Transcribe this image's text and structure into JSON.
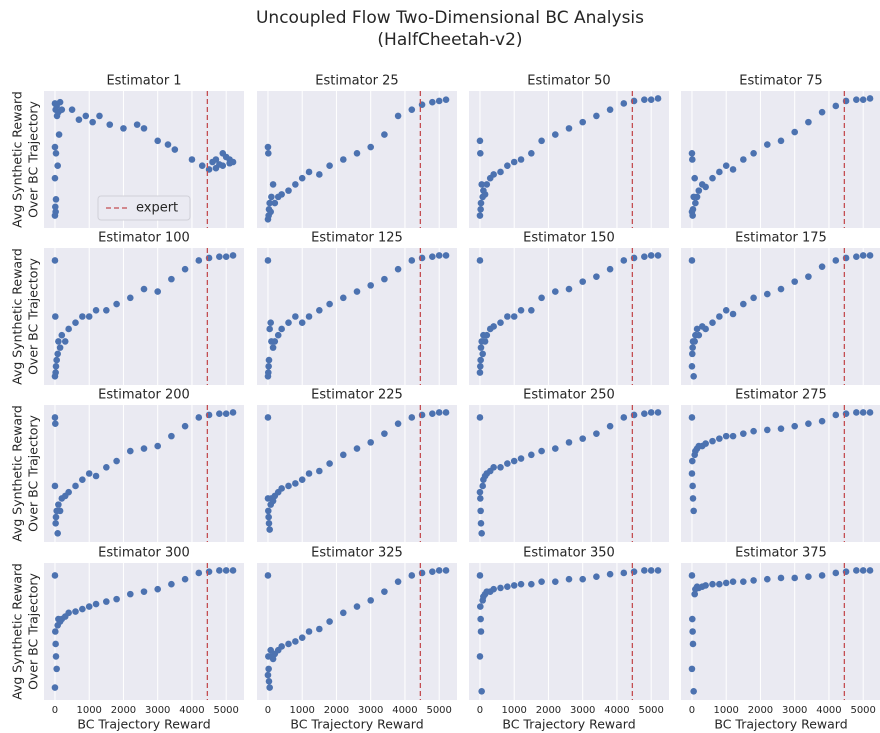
{
  "title": [
    "Uncoupled Flow Two-Dimensional BC Analysis",
    "(HalfCheetah-v2)"
  ],
  "chart_data": [
    {
      "type": "scatter",
      "title": "Estimator 1",
      "ylabel": [
        "Avg Synthetic Reward",
        "Over BC Trajectory"
      ],
      "color": "#4c72b0",
      "xlim": [
        -320,
        5520
      ],
      "ylim": [
        -0.05,
        1.05
      ],
      "xticks": [
        0,
        1000,
        2000,
        3000,
        4000,
        5000
      ],
      "grid": true,
      "vline_x": 4450,
      "vline_color": "#c44e52",
      "vline_label": "expert",
      "legend": "lower left",
      "x": [
        0,
        20,
        50,
        100,
        150,
        0,
        30,
        80,
        0,
        10,
        20,
        0,
        30,
        60,
        120,
        200,
        500,
        700,
        900,
        1100,
        1300,
        1600,
        2000,
        2400,
        2600,
        3000,
        3300,
        3500,
        4000,
        4300,
        4500,
        4600,
        4700,
        4800,
        4900,
        5000,
        5100,
        5200,
        4700,
        4900,
        5100
      ],
      "y": [
        0.95,
        0.9,
        0.93,
        0.88,
        0.96,
        0.6,
        0.55,
        0.45,
        0.35,
        0.12,
        0.08,
        0.05,
        0.18,
        0.85,
        0.7,
        0.9,
        0.9,
        0.82,
        0.85,
        0.8,
        0.85,
        0.78,
        0.75,
        0.78,
        0.75,
        0.65,
        0.62,
        0.58,
        0.5,
        0.45,
        0.42,
        0.48,
        0.5,
        0.46,
        0.55,
        0.52,
        0.5,
        0.48,
        0.43,
        0.45,
        0.47
      ]
    },
    {
      "type": "scatter",
      "title": "Estimator 25",
      "color": "#4c72b0",
      "xlim": [
        -320,
        5520
      ],
      "ylim": [
        -0.05,
        1.05
      ],
      "xticks": [
        0,
        1000,
        2000,
        3000,
        4000,
        5000
      ],
      "grid": true,
      "vline_x": 4450,
      "vline_color": "#c44e52",
      "x": [
        0,
        10,
        20,
        30,
        50,
        80,
        100,
        150,
        200,
        300,
        400,
        600,
        800,
        1000,
        1200,
        1500,
        1800,
        2200,
        2600,
        3000,
        3400,
        3800,
        4200,
        4500,
        4800,
        5000,
        5200,
        0
      ],
      "y": [
        0.6,
        0.55,
        0.05,
        0.1,
        0.15,
        0.08,
        0.2,
        0.3,
        0.15,
        0.2,
        0.22,
        0.25,
        0.3,
        0.35,
        0.4,
        0.38,
        0.45,
        0.5,
        0.55,
        0.6,
        0.7,
        0.85,
        0.9,
        0.94,
        0.96,
        0.97,
        0.98,
        0.02
      ]
    },
    {
      "type": "scatter",
      "title": "Estimator 50",
      "color": "#4c72b0",
      "xlim": [
        -320,
        5520
      ],
      "ylim": [
        -0.05,
        1.05
      ],
      "xticks": [
        0,
        1000,
        2000,
        3000,
        4000,
        5000
      ],
      "grid": true,
      "vline_x": 4450,
      "vline_color": "#c44e52",
      "x": [
        0,
        10,
        20,
        30,
        50,
        80,
        100,
        150,
        200,
        300,
        400,
        600,
        800,
        1000,
        1200,
        1500,
        1800,
        2200,
        2600,
        3000,
        3400,
        3800,
        4200,
        4500,
        4800,
        5000,
        5200,
        0
      ],
      "y": [
        0.65,
        0.55,
        0.1,
        0.15,
        0.3,
        0.2,
        0.25,
        0.22,
        0.3,
        0.35,
        0.38,
        0.4,
        0.45,
        0.48,
        0.5,
        0.55,
        0.65,
        0.7,
        0.75,
        0.8,
        0.85,
        0.9,
        0.95,
        0.97,
        0.98,
        0.98,
        0.99,
        0.05
      ]
    },
    {
      "type": "scatter",
      "title": "Estimator 75",
      "color": "#4c72b0",
      "xlim": [
        -320,
        5520
      ],
      "ylim": [
        -0.05,
        1.05
      ],
      "xticks": [
        0,
        1000,
        2000,
        3000,
        4000,
        5000
      ],
      "grid": true,
      "vline_x": 4450,
      "vline_color": "#c44e52",
      "x": [
        0,
        10,
        20,
        30,
        50,
        80,
        100,
        150,
        200,
        300,
        400,
        600,
        800,
        1000,
        1200,
        1500,
        1800,
        2200,
        2600,
        3000,
        3400,
        3800,
        4200,
        4500,
        4800,
        5000,
        5200,
        0
      ],
      "y": [
        0.55,
        0.5,
        0.05,
        0.1,
        0.2,
        0.35,
        0.15,
        0.2,
        0.25,
        0.3,
        0.28,
        0.35,
        0.4,
        0.45,
        0.42,
        0.5,
        0.55,
        0.62,
        0.65,
        0.72,
        0.8,
        0.88,
        0.93,
        0.97,
        0.98,
        0.98,
        0.99,
        0.08
      ]
    },
    {
      "type": "scatter",
      "title": "Estimator 100",
      "ylabel": [
        "Avg Synthetic Reward",
        "Over BC Trajectory"
      ],
      "color": "#4c72b0",
      "xlim": [
        -320,
        5520
      ],
      "ylim": [
        -0.05,
        1.05
      ],
      "xticks": [
        0,
        1000,
        2000,
        3000,
        4000,
        5000
      ],
      "grid": true,
      "vline_x": 4450,
      "vline_color": "#c44e52",
      "x": [
        0,
        10,
        20,
        30,
        50,
        80,
        100,
        150,
        200,
        300,
        400,
        600,
        800,
        1000,
        1200,
        1500,
        1800,
        2200,
        2600,
        3000,
        3400,
        3800,
        4200,
        4500,
        4800,
        5000,
        5200,
        0
      ],
      "y": [
        0.95,
        0.5,
        0.05,
        0.1,
        0.15,
        0.2,
        0.3,
        0.25,
        0.35,
        0.3,
        0.4,
        0.45,
        0.5,
        0.5,
        0.55,
        0.55,
        0.6,
        0.65,
        0.72,
        0.7,
        0.8,
        0.88,
        0.95,
        0.97,
        0.98,
        0.98,
        0.99,
        0.02
      ]
    },
    {
      "type": "scatter",
      "title": "Estimator 125",
      "color": "#4c72b0",
      "xlim": [
        -320,
        5520
      ],
      "ylim": [
        -0.05,
        1.05
      ],
      "xticks": [
        0,
        1000,
        2000,
        3000,
        4000,
        5000
      ],
      "grid": true,
      "vline_x": 4450,
      "vline_color": "#c44e52",
      "x": [
        0,
        10,
        20,
        30,
        50,
        80,
        100,
        150,
        200,
        300,
        400,
        600,
        800,
        1000,
        1200,
        1500,
        1800,
        2200,
        2600,
        3000,
        3400,
        3800,
        4200,
        4500,
        4800,
        5000,
        5200,
        0
      ],
      "y": [
        0.95,
        0.05,
        0.1,
        0.15,
        0.4,
        0.45,
        0.3,
        0.25,
        0.3,
        0.35,
        0.4,
        0.45,
        0.5,
        0.45,
        0.5,
        0.55,
        0.6,
        0.65,
        0.7,
        0.75,
        0.8,
        0.88,
        0.95,
        0.97,
        0.98,
        0.99,
        0.99,
        0.02
      ]
    },
    {
      "type": "scatter",
      "title": "Estimator 150",
      "color": "#4c72b0",
      "xlim": [
        -320,
        5520
      ],
      "ylim": [
        -0.05,
        1.05
      ],
      "xticks": [
        0,
        1000,
        2000,
        3000,
        4000,
        5000
      ],
      "grid": true,
      "vline_x": 4450,
      "vline_color": "#c44e52",
      "x": [
        0,
        10,
        20,
        30,
        50,
        80,
        100,
        150,
        200,
        300,
        400,
        600,
        800,
        1000,
        1200,
        1500,
        1800,
        2200,
        2600,
        3000,
        3400,
        3800,
        4200,
        4500,
        4800,
        5000,
        5200,
        0
      ],
      "y": [
        0.95,
        0.1,
        0.15,
        0.25,
        0.3,
        0.2,
        0.35,
        0.3,
        0.35,
        0.4,
        0.42,
        0.45,
        0.5,
        0.5,
        0.55,
        0.55,
        0.65,
        0.7,
        0.72,
        0.78,
        0.82,
        0.88,
        0.95,
        0.97,
        0.98,
        0.99,
        0.99,
        0.05
      ]
    },
    {
      "type": "scatter",
      "title": "Estimator 175",
      "color": "#4c72b0",
      "xlim": [
        -320,
        5520
      ],
      "ylim": [
        -0.05,
        1.05
      ],
      "xticks": [
        0,
        1000,
        2000,
        3000,
        4000,
        5000
      ],
      "grid": true,
      "vline_x": 4450,
      "vline_color": "#c44e52",
      "x": [
        0,
        10,
        20,
        30,
        50,
        80,
        100,
        150,
        200,
        300,
        400,
        600,
        800,
        1000,
        1200,
        1500,
        1800,
        2200,
        2600,
        3000,
        3400,
        3800,
        4200,
        4500,
        4800,
        5000,
        5200,
        0
      ],
      "y": [
        0.95,
        0.2,
        0.25,
        0.3,
        0.02,
        0.3,
        0.35,
        0.4,
        0.35,
        0.42,
        0.4,
        0.45,
        0.5,
        0.55,
        0.52,
        0.6,
        0.65,
        0.68,
        0.72,
        0.78,
        0.82,
        0.9,
        0.95,
        0.97,
        0.98,
        0.99,
        0.99,
        0.1
      ]
    },
    {
      "type": "scatter",
      "title": "Estimator 200",
      "ylabel": [
        "Avg Synthetic Reward",
        "Over BC Trajectory"
      ],
      "color": "#4c72b0",
      "xlim": [
        -320,
        5520
      ],
      "ylim": [
        -0.05,
        1.05
      ],
      "xticks": [
        0,
        1000,
        2000,
        3000,
        4000,
        5000
      ],
      "grid": true,
      "vline_x": 4450,
      "vline_color": "#c44e52",
      "x": [
        0,
        10,
        20,
        30,
        50,
        80,
        100,
        150,
        200,
        300,
        400,
        600,
        800,
        1000,
        1200,
        1500,
        1800,
        2200,
        2600,
        3000,
        3400,
        3800,
        4200,
        4500,
        4800,
        5000,
        5200,
        0
      ],
      "y": [
        0.95,
        0.9,
        0.1,
        0.15,
        0.2,
        0.02,
        0.25,
        0.2,
        0.3,
        0.32,
        0.35,
        0.4,
        0.45,
        0.5,
        0.48,
        0.55,
        0.6,
        0.68,
        0.7,
        0.72,
        0.8,
        0.88,
        0.95,
        0.97,
        0.98,
        0.98,
        0.99,
        0.4
      ]
    },
    {
      "type": "scatter",
      "title": "Estimator 225",
      "color": "#4c72b0",
      "xlim": [
        -320,
        5520
      ],
      "ylim": [
        -0.05,
        1.05
      ],
      "xticks": [
        0,
        1000,
        2000,
        3000,
        4000,
        5000
      ],
      "grid": true,
      "vline_x": 4450,
      "vline_color": "#c44e52",
      "x": [
        0,
        10,
        20,
        30,
        50,
        80,
        100,
        150,
        200,
        300,
        400,
        600,
        800,
        1000,
        1200,
        1500,
        1800,
        2200,
        2600,
        3000,
        3400,
        3800,
        4200,
        4500,
        4800,
        5000,
        5200,
        0
      ],
      "y": [
        0.95,
        0.2,
        0.15,
        0.1,
        0.05,
        0.25,
        0.3,
        0.28,
        0.32,
        0.35,
        0.38,
        0.4,
        0.42,
        0.45,
        0.5,
        0.52,
        0.58,
        0.65,
        0.7,
        0.75,
        0.82,
        0.9,
        0.95,
        0.97,
        0.98,
        0.99,
        0.99,
        0.3
      ]
    },
    {
      "type": "scatter",
      "title": "Estimator 250",
      "color": "#4c72b0",
      "xlim": [
        -320,
        5520
      ],
      "ylim": [
        -0.05,
        1.05
      ],
      "xticks": [
        0,
        1000,
        2000,
        3000,
        4000,
        5000
      ],
      "grid": true,
      "vline_x": 4450,
      "vline_color": "#c44e52",
      "x": [
        0,
        10,
        20,
        30,
        50,
        80,
        100,
        150,
        200,
        300,
        400,
        600,
        800,
        1000,
        1200,
        1500,
        1800,
        2200,
        2600,
        3000,
        3400,
        3800,
        4200,
        4500,
        4800,
        5000,
        5200,
        0
      ],
      "y": [
        0.95,
        0.3,
        0.2,
        0.1,
        0.02,
        0.4,
        0.45,
        0.48,
        0.5,
        0.52,
        0.55,
        0.55,
        0.58,
        0.6,
        0.62,
        0.65,
        0.68,
        0.7,
        0.75,
        0.78,
        0.82,
        0.88,
        0.95,
        0.97,
        0.98,
        0.99,
        0.99,
        0.35
      ]
    },
    {
      "type": "scatter",
      "title": "Estimator 275",
      "color": "#4c72b0",
      "xlim": [
        -320,
        5520
      ],
      "ylim": [
        -0.05,
        1.05
      ],
      "xticks": [
        0,
        1000,
        2000,
        3000,
        4000,
        5000
      ],
      "grid": true,
      "vline_x": 4450,
      "vline_color": "#c44e52",
      "x": [
        0,
        10,
        20,
        30,
        50,
        80,
        100,
        150,
        200,
        300,
        400,
        600,
        800,
        1000,
        1200,
        1500,
        1800,
        2200,
        2600,
        3000,
        3400,
        3800,
        4200,
        4500,
        4800,
        5000,
        5200,
        0
      ],
      "y": [
        0.95,
        0.6,
        0.4,
        0.3,
        0.2,
        0.65,
        0.68,
        0.7,
        0.72,
        0.72,
        0.74,
        0.76,
        0.78,
        0.8,
        0.8,
        0.82,
        0.84,
        0.85,
        0.86,
        0.88,
        0.9,
        0.92,
        0.97,
        0.98,
        0.99,
        0.99,
        0.99,
        0.5
      ]
    },
    {
      "type": "scatter",
      "title": "Estimator 300",
      "ylabel": [
        "Avg Synthetic Reward",
        "Over BC Trajectory"
      ],
      "xlabel": "BC Trajectory Reward",
      "color": "#4c72b0",
      "xlim": [
        -320,
        5520
      ],
      "ylim": [
        -0.05,
        1.05
      ],
      "xticks": [
        0,
        1000,
        2000,
        3000,
        4000,
        5000
      ],
      "grid": true,
      "vline_x": 4450,
      "vline_color": "#c44e52",
      "x": [
        0,
        10,
        20,
        30,
        50,
        80,
        100,
        150,
        200,
        300,
        400,
        600,
        800,
        1000,
        1200,
        1500,
        1800,
        2200,
        2600,
        3000,
        3400,
        3800,
        4200,
        4500,
        4800,
        5000,
        5200,
        0
      ],
      "y": [
        0.95,
        0.5,
        0.4,
        0.3,
        0.2,
        0.55,
        0.6,
        0.58,
        0.6,
        0.62,
        0.65,
        0.66,
        0.68,
        0.7,
        0.72,
        0.74,
        0.76,
        0.8,
        0.82,
        0.84,
        0.88,
        0.92,
        0.97,
        0.98,
        0.99,
        0.99,
        0.99,
        0.05
      ]
    },
    {
      "type": "scatter",
      "title": "Estimator 325",
      "xlabel": "BC Trajectory Reward",
      "color": "#4c72b0",
      "xlim": [
        -320,
        5520
      ],
      "ylim": [
        -0.05,
        1.05
      ],
      "xticks": [
        0,
        1000,
        2000,
        3000,
        4000,
        5000
      ],
      "grid": true,
      "vline_x": 4450,
      "vline_color": "#c44e52",
      "x": [
        0,
        10,
        20,
        30,
        50,
        80,
        100,
        150,
        200,
        300,
        400,
        600,
        800,
        1000,
        1200,
        1500,
        1800,
        2200,
        2600,
        3000,
        3400,
        3800,
        4200,
        4500,
        4800,
        5000,
        5200,
        0
      ],
      "y": [
        0.95,
        0.3,
        0.2,
        0.1,
        0.05,
        0.35,
        0.3,
        0.28,
        0.32,
        0.35,
        0.38,
        0.4,
        0.42,
        0.45,
        0.5,
        0.52,
        0.58,
        0.65,
        0.7,
        0.75,
        0.82,
        0.9,
        0.95,
        0.97,
        0.98,
        0.99,
        0.99,
        0.15
      ]
    },
    {
      "type": "scatter",
      "title": "Estimator 350",
      "xlabel": "BC Trajectory Reward",
      "color": "#4c72b0",
      "xlim": [
        -320,
        5520
      ],
      "ylim": [
        -0.05,
        1.05
      ],
      "xticks": [
        0,
        1000,
        2000,
        3000,
        4000,
        5000
      ],
      "grid": true,
      "vline_x": 4450,
      "vline_color": "#c44e52",
      "x": [
        0,
        10,
        20,
        30,
        50,
        80,
        100,
        150,
        200,
        300,
        400,
        600,
        800,
        1000,
        1200,
        1500,
        1800,
        2200,
        2600,
        3000,
        3400,
        3800,
        4200,
        4500,
        4800,
        5000,
        5200,
        0
      ],
      "y": [
        0.95,
        0.7,
        0.6,
        0.5,
        0.02,
        0.75,
        0.78,
        0.8,
        0.82,
        0.82,
        0.84,
        0.85,
        0.86,
        0.87,
        0.88,
        0.88,
        0.9,
        0.9,
        0.92,
        0.92,
        0.94,
        0.96,
        0.97,
        0.98,
        0.99,
        0.99,
        0.99,
        0.3
      ]
    },
    {
      "type": "scatter",
      "title": "Estimator 375",
      "xlabel": "BC Trajectory Reward",
      "color": "#4c72b0",
      "xlim": [
        -320,
        5520
      ],
      "ylim": [
        -0.05,
        1.05
      ],
      "xticks": [
        0,
        1000,
        2000,
        3000,
        4000,
        5000
      ],
      "grid": true,
      "vline_x": 4450,
      "vline_color": "#c44e52",
      "x": [
        0,
        10,
        20,
        30,
        50,
        80,
        100,
        150,
        200,
        300,
        400,
        600,
        800,
        1000,
        1200,
        1500,
        1800,
        2200,
        2600,
        3000,
        3400,
        3800,
        4200,
        4500,
        4800,
        5000,
        5200,
        0
      ],
      "y": [
        0.95,
        0.6,
        0.5,
        0.4,
        0.02,
        0.8,
        0.84,
        0.86,
        0.85,
        0.86,
        0.87,
        0.88,
        0.88,
        0.89,
        0.9,
        0.9,
        0.91,
        0.92,
        0.93,
        0.93,
        0.94,
        0.95,
        0.97,
        0.98,
        0.99,
        0.99,
        0.99,
        0.2
      ]
    }
  ]
}
